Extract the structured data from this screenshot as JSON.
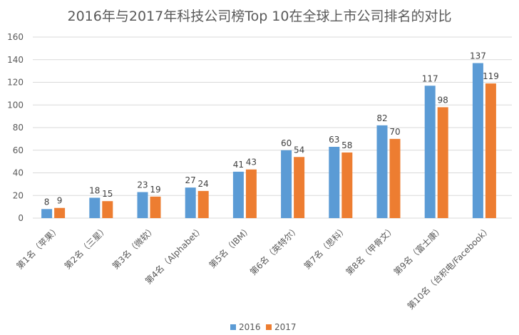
{
  "chart_data": {
    "type": "bar",
    "title": "2016年与2017年科技公司榜Top 10在全球上市公司排名的对比",
    "xlabel": "",
    "ylabel": "",
    "ylim": [
      0,
      160
    ],
    "yticks": [
      0,
      20,
      40,
      60,
      80,
      100,
      120,
      140,
      160
    ],
    "grid": true,
    "legend_position": "bottom",
    "categories": [
      "第1名（苹果）",
      "第2名（三星）",
      "第3名（微软）",
      "第4名（Alphabet）",
      "第5名（IBM）",
      "第6名（英特尔）",
      "第7名（思科）",
      "第8名（甲骨文）",
      "第9名（富士康）",
      "第10名（台积电/Facebook）"
    ],
    "series": [
      {
        "name": "2016",
        "color": "#5b9bd5",
        "values": [
          8,
          18,
          23,
          27,
          41,
          60,
          63,
          82,
          117,
          137
        ]
      },
      {
        "name": "2017",
        "color": "#ed7d31",
        "values": [
          9,
          15,
          19,
          24,
          43,
          54,
          58,
          70,
          98,
          119
        ]
      }
    ]
  }
}
